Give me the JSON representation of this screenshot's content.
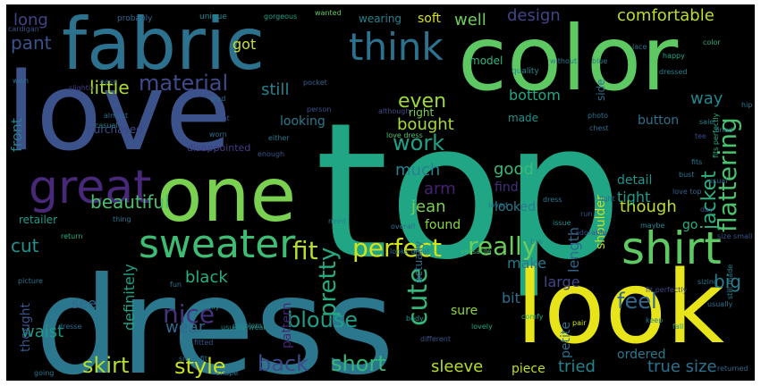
{
  "wordcloud": {
    "background": "#000000",
    "words": [
      {
        "text": "top",
        "color": "#21a685"
      },
      {
        "text": "dress",
        "color": "#2b788e"
      },
      {
        "text": "love",
        "color": "#3b528b"
      },
      {
        "text": "look",
        "color": "#e7e419"
      },
      {
        "text": "color",
        "color": "#5ec962"
      },
      {
        "text": "fabric",
        "color": "#2c728e"
      },
      {
        "text": "one",
        "color": "#7ad151"
      },
      {
        "text": "sweater",
        "color": "#3fbc73"
      },
      {
        "text": "shirt",
        "color": "#5ec962"
      },
      {
        "text": "great",
        "color": "#482878"
      },
      {
        "text": "think",
        "color": "#2c728e"
      },
      {
        "text": "perfect",
        "color": "#d2e21b"
      },
      {
        "text": "really",
        "color": "#6ccd5a"
      },
      {
        "text": "fit",
        "color": "#b5de2b"
      },
      {
        "text": "material",
        "color": "#3e4a89"
      },
      {
        "text": "skirt",
        "color": "#b5de2b"
      },
      {
        "text": "style",
        "color": "#cae11f"
      },
      {
        "text": "back",
        "color": "#3e4a89"
      },
      {
        "text": "short",
        "color": "#35b779"
      },
      {
        "text": "cute",
        "color": "#35b779"
      },
      {
        "text": "pretty",
        "color": "#25ab82"
      },
      {
        "text": "flattering",
        "color": "#4ac16d"
      },
      {
        "text": "feel",
        "color": "#31688e"
      },
      {
        "text": "nice",
        "color": "#46337e"
      },
      {
        "text": "blouse",
        "color": "#1f9e89"
      },
      {
        "text": "work",
        "color": "#1fa287"
      },
      {
        "text": "comfortable",
        "color": "#bddf26"
      },
      {
        "text": "design",
        "color": "#404688"
      },
      {
        "text": "even",
        "color": "#9dd93b"
      },
      {
        "text": "still",
        "color": "#26818e"
      },
      {
        "text": "bought",
        "color": "#a8db34"
      },
      {
        "text": "pant",
        "color": "#3b528b"
      },
      {
        "text": "little",
        "color": "#addc30"
      },
      {
        "text": "beautiful",
        "color": "#4ac16d"
      },
      {
        "text": "cut",
        "color": "#21918c"
      },
      {
        "text": "jacket",
        "color": "#2db27d"
      },
      {
        "text": "jean",
        "color": "#7ad151"
      },
      {
        "text": "much",
        "color": "#26828e"
      },
      {
        "text": "good",
        "color": "#3aba76"
      },
      {
        "text": "big",
        "color": "#277f8e"
      },
      {
        "text": "make",
        "color": "#2a788e"
      },
      {
        "text": "black",
        "color": "#26ad81"
      },
      {
        "text": "wear",
        "color": "#31688e"
      },
      {
        "text": "waist",
        "color": "#1e9b8a"
      },
      {
        "text": "sleeve",
        "color": "#b5de2b"
      },
      {
        "text": "tried",
        "color": "#25848e"
      },
      {
        "text": "true size",
        "color": "#2c728e"
      },
      {
        "text": "though",
        "color": "#bddf26"
      },
      {
        "text": "length",
        "color": "#31688e"
      },
      {
        "text": "way",
        "color": "#25848e"
      },
      {
        "text": "well",
        "color": "#6ece58"
      },
      {
        "text": "long",
        "color": "#414487"
      },
      {
        "text": "got",
        "color": "#cae11f"
      },
      {
        "text": "front",
        "color": "#287d8e"
      },
      {
        "text": "see",
        "color": "#31688e"
      },
      {
        "text": "definitely",
        "color": "#1fa188"
      },
      {
        "text": "thought",
        "color": "#3a538b"
      },
      {
        "text": "retailer",
        "color": "#1e9c89"
      },
      {
        "text": "large",
        "color": "#3f4788"
      },
      {
        "text": "petite",
        "color": "#2d708e"
      },
      {
        "text": "ordered",
        "color": "#29798e"
      },
      {
        "text": "piece",
        "color": "#bddf26"
      },
      {
        "text": "pattern",
        "color": "#482475"
      },
      {
        "text": "bit",
        "color": "#2e6e8e"
      },
      {
        "text": "arm",
        "color": "#482173"
      },
      {
        "text": "sure",
        "color": "#8bd646"
      },
      {
        "text": "found",
        "color": "#8bd646"
      },
      {
        "text": "looked",
        "color": "#287c8e"
      },
      {
        "text": "detail",
        "color": "#1f948c"
      },
      {
        "text": "tight",
        "color": "#1f9a8a"
      },
      {
        "text": "bottom",
        "color": "#22a785"
      },
      {
        "text": "made",
        "color": "#21918c"
      },
      {
        "text": "button",
        "color": "#2d708e"
      },
      {
        "text": "shoulder",
        "color": "#c0df25"
      },
      {
        "text": "find",
        "color": "#46307e"
      },
      {
        "text": "go",
        "color": "#27ad81"
      },
      {
        "text": "soft",
        "color": "#d8e219"
      },
      {
        "text": "wearing",
        "color": "#26828e"
      },
      {
        "text": "looking",
        "color": "#2a788e"
      },
      {
        "text": "purchased",
        "color": "#3e4a89"
      },
      {
        "text": "right",
        "color": "#7ad151"
      },
      {
        "text": "side",
        "color": "#2e6e8e"
      },
      {
        "text": "model",
        "color": "#32b67a"
      },
      {
        "text": "actually",
        "color": "#2e6e8e"
      },
      {
        "text": "disappointed",
        "color": "#433e85"
      },
      {
        "text": "quality",
        "color": "#23898e"
      },
      {
        "text": "probably",
        "color": "#31688e"
      },
      {
        "text": "unique",
        "color": "#23898e"
      },
      {
        "text": "gorgeous",
        "color": "#20a486"
      },
      {
        "text": "wanted",
        "color": "#5ec962"
      },
      {
        "text": "cardigan",
        "color": "#3b528b"
      },
      {
        "text": "lace",
        "color": "#2c728e"
      },
      {
        "text": "without",
        "color": "#2a788e"
      },
      {
        "text": "fun",
        "color": "#2b758e"
      },
      {
        "text": "slightly",
        "color": "#433e85"
      },
      {
        "text": "usually",
        "color": "#26828e"
      },
      {
        "text": "body",
        "color": "#1f988b"
      },
      {
        "text": "although",
        "color": "#3e4c8a"
      },
      {
        "text": "blue",
        "color": "#2a788e"
      },
      {
        "text": "happy",
        "color": "#22a884"
      },
      {
        "text": "casual",
        "color": "#26818e"
      },
      {
        "text": "person",
        "color": "#3b528b"
      },
      {
        "text": "problem",
        "color": "#25848e"
      },
      {
        "text": "love dress",
        "color": "#4ac16d"
      },
      {
        "text": "usually wear",
        "color": "#21918c"
      },
      {
        "text": "looks great",
        "color": "#29798e"
      },
      {
        "text": "versatile",
        "color": "#3fbc73"
      },
      {
        "text": "fit perfectly",
        "color": "#3f4788"
      },
      {
        "text": "small fit",
        "color": "#2c728e"
      },
      {
        "text": "love top",
        "color": "#35608d"
      },
      {
        "text": "size small",
        "color": "#39568c"
      },
      {
        "text": "fits perfectly",
        "color": "#29af7f"
      },
      {
        "text": "different",
        "color": "#3b528b"
      },
      {
        "text": "lovely",
        "color": "#21a685"
      },
      {
        "text": "comfy",
        "color": "#25ac82"
      },
      {
        "text": "pair",
        "color": "#d2e21b"
      },
      {
        "text": "fall",
        "color": "#21918c"
      },
      {
        "text": "keep",
        "color": "#26828e"
      },
      {
        "text": "still made",
        "color": "#26828e"
      },
      {
        "text": "returned",
        "color": "#31688e"
      },
      {
        "text": "going",
        "color": "#2a788e"
      },
      {
        "text": "shape",
        "color": "#2d708e"
      },
      {
        "text": "picture",
        "color": "#2c728e"
      },
      {
        "text": "return",
        "color": "#29af7f"
      },
      {
        "text": "fitted",
        "color": "#39568c"
      },
      {
        "text": "dresse",
        "color": "#2e6e8e"
      },
      {
        "text": "wish",
        "color": "#2b758e"
      },
      {
        "text": "easy",
        "color": "#35608d"
      },
      {
        "text": "photo",
        "color": "#2c728e"
      },
      {
        "text": "adorable",
        "color": "#3b528b"
      },
      {
        "text": "maybe",
        "color": "#23898e"
      },
      {
        "text": "light",
        "color": "#31688e"
      },
      {
        "text": "need",
        "color": "#26828e"
      },
      {
        "text": "sizing",
        "color": "#2a788e"
      },
      {
        "text": "thing",
        "color": "#2c728e"
      },
      {
        "text": "day",
        "color": "#3b528b"
      },
      {
        "text": "color",
        "color": "#25ac82"
      },
      {
        "text": "lined",
        "color": "#2b758e"
      },
      {
        "text": "print",
        "color": "#39568c"
      },
      {
        "text": "sale",
        "color": "#287c8e"
      },
      {
        "text": "chest",
        "color": "#2e6e8e"
      },
      {
        "text": "tee",
        "color": "#3e4a89"
      },
      {
        "text": "usual",
        "color": "#31688e"
      },
      {
        "text": "bust",
        "color": "#2a788e"
      },
      {
        "text": "dressed",
        "color": "#26828e"
      },
      {
        "text": "hip",
        "color": "#2a788e"
      },
      {
        "text": "fits",
        "color": "#2c728e"
      },
      {
        "text": "almost",
        "color": "#31688e"
      },
      {
        "text": "glad",
        "color": "#2d708e"
      },
      {
        "text": "worn",
        "color": "#2e6e8e"
      },
      {
        "text": "pocket",
        "color": "#35608d"
      },
      {
        "text": "dress",
        "color": "#2b758e"
      },
      {
        "text": "loved",
        "color": "#2c728e"
      },
      {
        "text": "enough",
        "color": "#39568c"
      },
      {
        "text": "either",
        "color": "#2a788e"
      },
      {
        "text": "overall",
        "color": "#2d708e"
      },
      {
        "text": "issue",
        "color": "#23898e"
      },
      {
        "text": "run",
        "color": "#3b528b"
      },
      {
        "text": "bra",
        "color": "#26828e"
      },
      {
        "text": "usually",
        "color": "#2c728e"
      }
    ]
  }
}
